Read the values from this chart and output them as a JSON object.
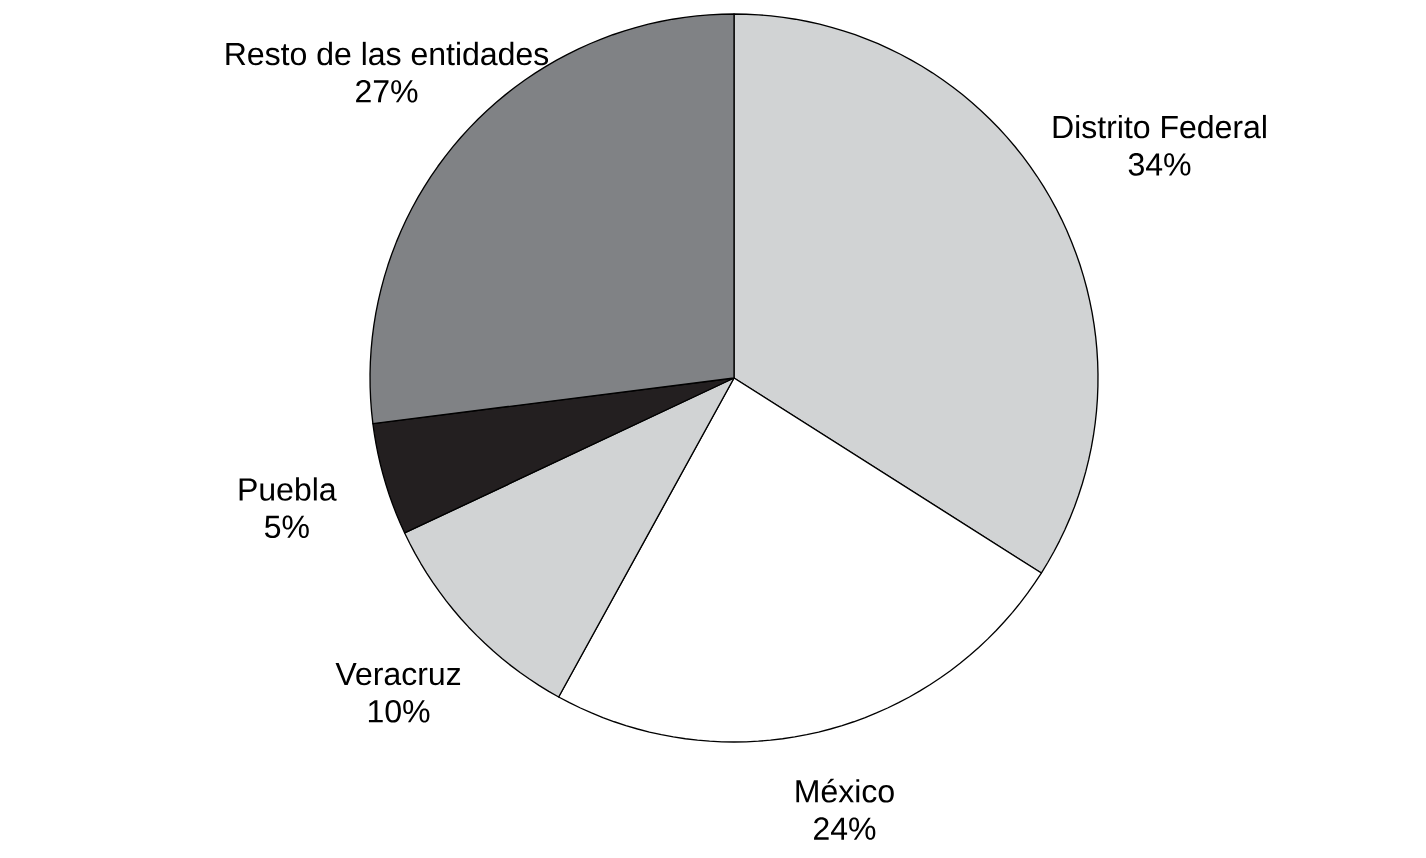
{
  "chart_data": {
    "type": "pie",
    "categories": [
      "Distrito Federal",
      "México",
      "Veracruz",
      "Puebla",
      "Resto de las entidades"
    ],
    "values": [
      34,
      24,
      10,
      5,
      27
    ],
    "value_labels": [
      "34%",
      "24%",
      "10%",
      "5%",
      "27%"
    ],
    "colors": [
      "#d1d3d4",
      "#ffffff",
      "#d1d3d4",
      "#231f20",
      "#808285"
    ]
  }
}
